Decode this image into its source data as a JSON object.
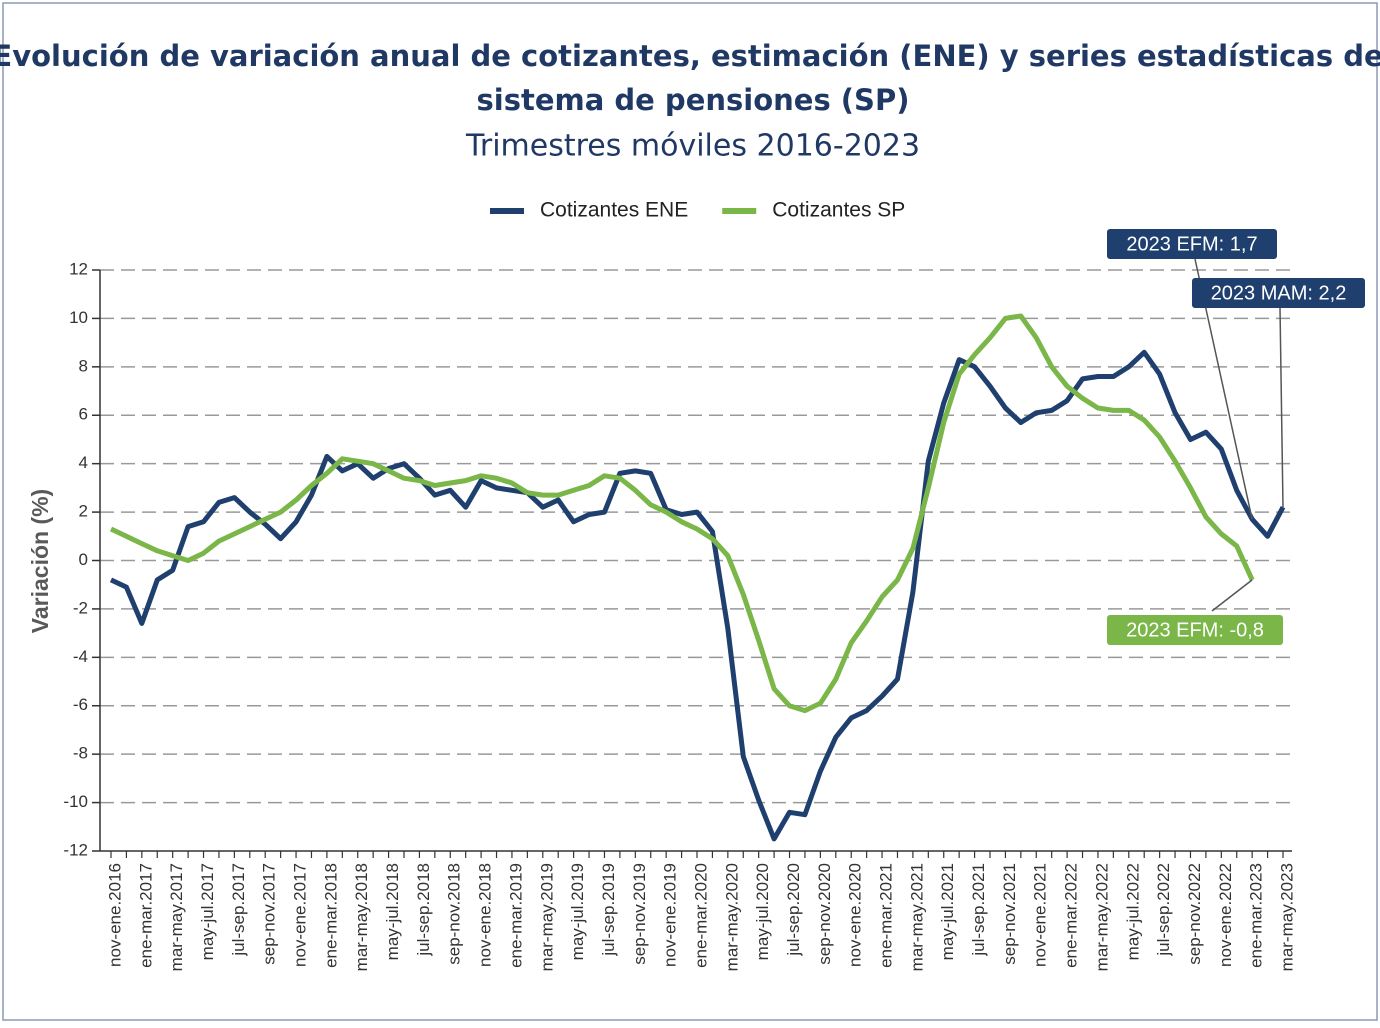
{
  "chart_data": {
    "type": "line",
    "title": "Evolución de variación anual de cotizantes, estimación (ENE) y series estadísticas del sistema de pensiones (SP)",
    "subtitle": "Trimestres móviles 2016-2023",
    "y_label": "Variación (%)",
    "categories": [
      "nov-ene.2016",
      null,
      "ene-mar.2017",
      null,
      "mar-may.2017",
      null,
      "may-jul.2017",
      null,
      "jul-sep.2017",
      null,
      "sep-nov.2017",
      null,
      "nov-ene.2017",
      null,
      "ene-mar.2018",
      null,
      "mar-may.2018",
      null,
      "may-jul.2018",
      null,
      "jul-sep.2018",
      null,
      "sep-nov.2018",
      null,
      "nov-ene.2018",
      null,
      "ene-mar.2019",
      null,
      "mar-may.2019",
      null,
      "may-jul.2019",
      null,
      "jul-sep.2019",
      null,
      "sep-nov.2019",
      null,
      "nov-ene.2019",
      null,
      "ene-mar.2020",
      null,
      "mar-may.2020",
      null,
      "may-jul.2020",
      null,
      "jul-sep.2020",
      null,
      "sep-nov.2020",
      null,
      "nov-ene.2020",
      null,
      "ene-mar.2021",
      null,
      "mar-may.2021",
      null,
      "may-jul.2021",
      null,
      "jul-sep.2021",
      null,
      "sep-nov.2021",
      null,
      "nov-ene.2021",
      null,
      "ene-mar.2022",
      null,
      "mar-may.2022",
      null,
      "may-jul.2022",
      null,
      "jul-sep.2022",
      null,
      "sep-nov.2022",
      null,
      "nov-ene.2022",
      null,
      "ene-mar.2023",
      null,
      "mar-may.2023"
    ],
    "series": [
      {
        "name": "Cotizantes ENE",
        "color": "#1f3f6e",
        "values": [
          -0.8,
          -1.1,
          -2.6,
          -0.8,
          -0.4,
          1.4,
          1.6,
          2.4,
          2.6,
          2.0,
          1.5,
          0.9,
          1.6,
          2.7,
          4.3,
          3.7,
          4.0,
          3.4,
          3.8,
          4.0,
          3.4,
          2.7,
          2.9,
          2.2,
          3.3,
          3.0,
          2.9,
          2.8,
          2.2,
          2.5,
          1.6,
          1.9,
          2.0,
          3.6,
          3.7,
          3.6,
          2.1,
          1.9,
          2.0,
          1.2,
          -2.8,
          -8.1,
          -9.9,
          -11.5,
          -10.4,
          -10.5,
          -8.7,
          -7.3,
          -6.5,
          -6.2,
          -5.6,
          -4.9,
          -1.3,
          4.1,
          6.5,
          8.3,
          8.0,
          7.2,
          6.3,
          5.7,
          6.1,
          6.2,
          6.6,
          7.5,
          7.6,
          7.6,
          8.0,
          8.6,
          7.7,
          6.1,
          5.0,
          5.3,
          4.6,
          2.9,
          1.7,
          1.0,
          2.2
        ]
      },
      {
        "name": "Cotizantes SP",
        "color": "#7ab648",
        "values": [
          1.3,
          1.0,
          0.7,
          0.4,
          0.2,
          0.0,
          0.3,
          0.8,
          1.1,
          1.4,
          1.7,
          2.0,
          2.5,
          3.1,
          3.6,
          4.2,
          4.1,
          4.0,
          3.7,
          3.4,
          3.3,
          3.1,
          3.2,
          3.3,
          3.5,
          3.4,
          3.2,
          2.8,
          2.7,
          2.7,
          2.9,
          3.1,
          3.5,
          3.4,
          2.9,
          2.3,
          2.0,
          1.6,
          1.3,
          0.9,
          0.2,
          -1.4,
          -3.3,
          -5.3,
          -6.0,
          -6.2,
          -5.9,
          -4.9,
          -3.4,
          -2.5,
          -1.5,
          -0.8,
          0.5,
          3.0,
          5.7,
          7.7,
          8.5,
          9.2,
          10.0,
          10.1,
          9.2,
          8.0,
          7.2,
          6.7,
          6.3,
          6.2,
          6.2,
          5.8,
          5.1,
          4.1,
          3.0,
          1.8,
          1.1,
          0.6,
          -0.8,
          null,
          null
        ]
      }
    ],
    "ylim": [
      -12,
      12
    ],
    "yticks": [
      12,
      10,
      8,
      6,
      4,
      2,
      0,
      -2,
      -4,
      -6,
      -8,
      -10,
      -12
    ],
    "grid": true,
    "legend": "top",
    "annotations": [
      {
        "text": "2023 EFM: 1,7",
        "color": "#1f3f6e"
      },
      {
        "text": "2023 MAM: 2,2",
        "color": "#1f3f6e"
      },
      {
        "text": "2023 EFM: -0,8",
        "color": "#7ab648"
      }
    ]
  }
}
